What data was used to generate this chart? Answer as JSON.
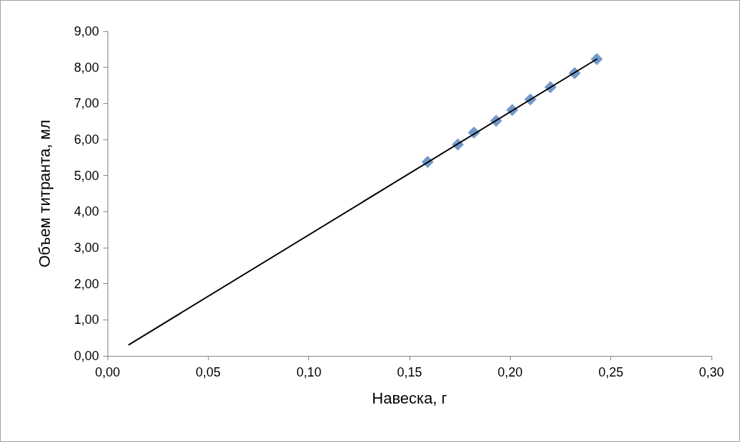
{
  "chart_data": {
    "type": "scatter",
    "xlabel": "Навеска, г",
    "ylabel": "Объем титранта, мл",
    "xlim": [
      0,
      0.3
    ],
    "ylim": [
      0,
      9
    ],
    "xticks": [
      {
        "value": 0,
        "label": "0,00"
      },
      {
        "value": 0.05,
        "label": "0,05"
      },
      {
        "value": 0.1,
        "label": "0,10"
      },
      {
        "value": 0.15,
        "label": "0,15"
      },
      {
        "value": 0.2,
        "label": "0,20"
      },
      {
        "value": 0.25,
        "label": "0,25"
      },
      {
        "value": 0.3,
        "label": "0,30"
      }
    ],
    "yticks": [
      {
        "value": 0,
        "label": "0,00"
      },
      {
        "value": 1,
        "label": "1,00"
      },
      {
        "value": 2,
        "label": "2,00"
      },
      {
        "value": 3,
        "label": "3,00"
      },
      {
        "value": 4,
        "label": "4,00"
      },
      {
        "value": 5,
        "label": "5,00"
      },
      {
        "value": 6,
        "label": "6,00"
      },
      {
        "value": 7,
        "label": "7,00"
      },
      {
        "value": 8,
        "label": "8,00"
      },
      {
        "value": 9,
        "label": "9,00"
      }
    ],
    "grid": false,
    "series": [
      {
        "marker": "diamond",
        "color": "#4f81bd",
        "x": [
          0.159,
          0.174,
          0.182,
          0.193,
          0.201,
          0.21,
          0.22,
          0.232,
          0.243
        ],
        "values": [
          5.38,
          5.86,
          6.19,
          6.52,
          6.82,
          7.11,
          7.45,
          7.84,
          8.23
        ]
      },
      {
        "type": "line",
        "marker": "none",
        "color": "#000000",
        "line_style": "solid",
        "x": [
          0.0106,
          0.243
        ],
        "values": [
          0.31,
          8.23
        ]
      }
    ]
  }
}
